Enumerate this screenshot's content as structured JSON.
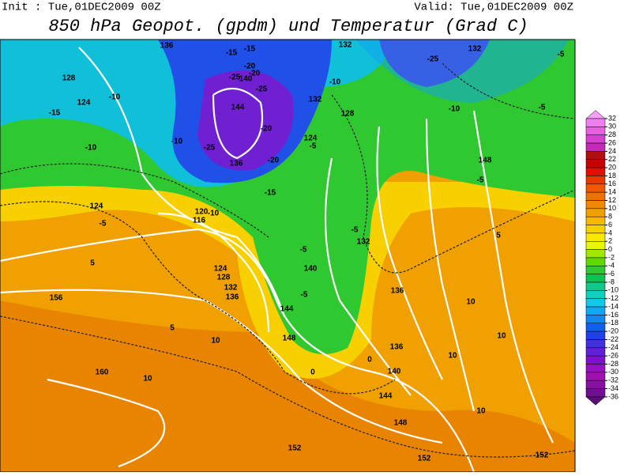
{
  "header": {
    "init": "Init : Tue,01DEC2009 00Z",
    "valid": "Valid: Tue,01DEC2009 00Z",
    "title": "850 hPa Geopot. (gpdm) und Temperatur (Grad C)"
  },
  "colorbar": {
    "levels": [
      32,
      30,
      28,
      26,
      24,
      22,
      20,
      18,
      16,
      14,
      12,
      10,
      8,
      6,
      4,
      2,
      0,
      -2,
      -4,
      -6,
      -8,
      -10,
      -12,
      -14,
      -16,
      -18,
      -20,
      -22,
      -24,
      -26,
      -28,
      -30,
      -32,
      -34,
      -36
    ],
    "colors": [
      "#f8a0f8",
      "#f080f0",
      "#e860e0",
      "#d840d0",
      "#c828b8",
      "#b01010",
      "#c80000",
      "#e01000",
      "#e83800",
      "#f05800",
      "#f07000",
      "#f08800",
      "#f0a000",
      "#f8b800",
      "#f8d000",
      "#f8e800",
      "#e8f800",
      "#a0e800",
      "#60d800",
      "#30c830",
      "#10c050",
      "#10c888",
      "#10d0c0",
      "#10c8e8",
      "#10a8f0",
      "#1088f0",
      "#1060f0",
      "#2040e8",
      "#4030e0",
      "#6020d8",
      "#8010d0",
      "#9810c0",
      "#a010b0",
      "#8810a0",
      "#701090",
      "#581078"
    ]
  },
  "map": {
    "labels": [
      "136",
      "-15",
      "-15",
      "-20",
      "-25",
      "132",
      "-5",
      "128",
      "124",
      "-10",
      "-15",
      "-10",
      "132",
      "140",
      "-25",
      "144",
      "-20",
      "-25",
      "136",
      "-20",
      "-10",
      "132",
      "128",
      "124",
      "-5",
      "124",
      "-15",
      "120",
      "116",
      "-10",
      "-5",
      "5",
      "124",
      "128",
      "132",
      "136",
      "156",
      "5",
      "10",
      "160",
      "10",
      "144",
      "148",
      "-5",
      "140",
      "0",
      "0",
      "136",
      "140",
      "144",
      "148",
      "152",
      "152",
      "152",
      "10",
      "10",
      "5",
      "-5",
      "-10",
      "-5",
      "148",
      "-5",
      "-10",
      "10",
      "10",
      "-5",
      "-25",
      "-20",
      "132",
      "136"
    ]
  }
}
